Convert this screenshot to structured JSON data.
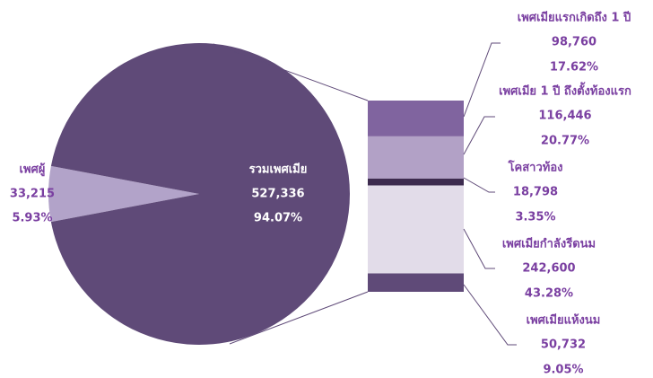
{
  "chart_data": {
    "type": "pie-of-bar",
    "pie": {
      "categories": [
        "เพศผู้",
        "รวมเพศเมีย"
      ],
      "values": [
        33215,
        527336
      ],
      "value_labels": [
        "33,215",
        "527,336"
      ],
      "percent_labels": [
        "5.93%",
        "94.07%"
      ],
      "colors": [
        "#b2a3c9",
        "#5f4a78"
      ]
    },
    "bar": {
      "categories": [
        "เพศเมียแรกเกิดถึง 1 ปี",
        "เพศเมีย 1 ปี ถึงตั้งท้องแรก",
        "โคสาวท้อง",
        "เพศเมียกำลังรีดนม",
        "เพศเมียแห้งนม"
      ],
      "values": [
        98760,
        116446,
        18798,
        242600,
        50732
      ],
      "value_labels": [
        "98,760",
        "116,446",
        "18,798",
        "242,600",
        "50,732"
      ],
      "percent_labels": [
        "17.62%",
        "20.77%",
        "3.35%",
        "43.28%",
        "9.05%"
      ],
      "colors": [
        "#80649f",
        "#b2a1c6",
        "#3d2b4f",
        "#e2dce9",
        "#5f4a78"
      ]
    }
  }
}
